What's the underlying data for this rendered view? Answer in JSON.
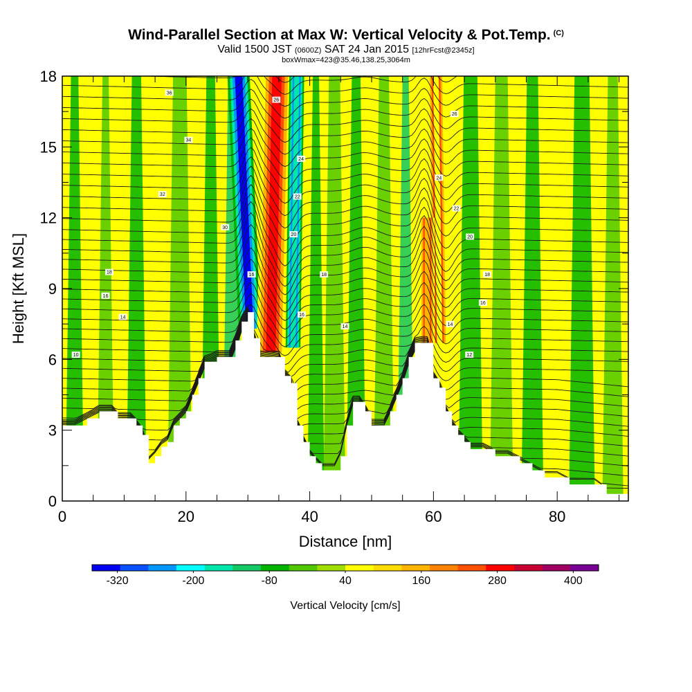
{
  "header": {
    "title": "Wind-Parallel Section at Max W: Vertical Velocity & Pot.Temp.",
    "copyright": "(C)",
    "valid_prefix": "Valid 1500 JST",
    "utc": "(0600Z)",
    "valid_date": "SAT 24 Jan 2015",
    "forecast": "[12hrFcst@2345z]",
    "box_info": "boxWmax=423@35.46,138.25,3064m"
  },
  "chart_data": {
    "type": "heatmap",
    "xlabel": "Distance [nm]",
    "ylabel": "Height [Kft MSL]",
    "xlim": [
      0,
      91.5
    ],
    "ylim": [
      0,
      18
    ],
    "x_ticks": [
      0,
      20,
      40,
      60,
      80
    ],
    "y_ticks": [
      0,
      3,
      6,
      9,
      12,
      15,
      18
    ],
    "colorbar": {
      "label": "Vertical Velocity [cm/s]",
      "tick_labels": [
        "-320",
        "-200",
        "-80",
        "40",
        "160",
        "280",
        "400"
      ],
      "tick_values": [
        -320,
        -200,
        -80,
        40,
        160,
        280,
        400
      ],
      "min": -360,
      "max": 440,
      "colors": [
        "#0000f0",
        "#0a50ff",
        "#0096ff",
        "#00ffff",
        "#00e6aa",
        "#14c864",
        "#00b400",
        "#50c800",
        "#a0dc00",
        "#ffff00",
        "#ffdc00",
        "#ffb400",
        "#ff8200",
        "#ff5000",
        "#ff0000",
        "#c80032",
        "#a00064",
        "#780096"
      ]
    },
    "terrain": [
      [
        0,
        3.2
      ],
      [
        2,
        3.2
      ],
      [
        4,
        3.5
      ],
      [
        6,
        3.8
      ],
      [
        8,
        3.8
      ],
      [
        9,
        3.5
      ],
      [
        11,
        3.5
      ],
      [
        12,
        3.2
      ],
      [
        13,
        2.8
      ],
      [
        14,
        1.6
      ],
      [
        15,
        1.9
      ],
      [
        16,
        2.3
      ],
      [
        17,
        2.5
      ],
      [
        18,
        3.2
      ],
      [
        19,
        3.5
      ],
      [
        20,
        3.8
      ],
      [
        21,
        4.5
      ],
      [
        22,
        5.2
      ],
      [
        23,
        5.9
      ],
      [
        25,
        6.1
      ],
      [
        27,
        6.1
      ],
      [
        28,
        6.8
      ],
      [
        29,
        7.6
      ],
      [
        30,
        8.0
      ],
      [
        31,
        6.9
      ],
      [
        32,
        6.1
      ],
      [
        35,
        6.1
      ],
      [
        36,
        5.3
      ],
      [
        37,
        5.0
      ],
      [
        38,
        3.2
      ],
      [
        39,
        2.5
      ],
      [
        40,
        1.9
      ],
      [
        41,
        1.6
      ],
      [
        42,
        1.3
      ],
      [
        44,
        1.3
      ],
      [
        45,
        1.9
      ],
      [
        46,
        3.2
      ],
      [
        47,
        4.2
      ],
      [
        48,
        4.2
      ],
      [
        49,
        3.8
      ],
      [
        50,
        3.2
      ],
      [
        52,
        3.2
      ],
      [
        53,
        3.8
      ],
      [
        54,
        4.5
      ],
      [
        55,
        5.2
      ],
      [
        56,
        6.1
      ],
      [
        57,
        6.7
      ],
      [
        59,
        6.7
      ],
      [
        60,
        5.2
      ],
      [
        61,
        4.8
      ],
      [
        62,
        3.8
      ],
      [
        63,
        3.2
      ],
      [
        64,
        2.8
      ],
      [
        65,
        2.5
      ],
      [
        66,
        2.2
      ],
      [
        68,
        2.2
      ],
      [
        70,
        1.9
      ],
      [
        72,
        1.9
      ],
      [
        74,
        1.6
      ],
      [
        76,
        1.3
      ],
      [
        78,
        1.0
      ],
      [
        80,
        1.0
      ],
      [
        82,
        0.7
      ],
      [
        86,
        0.7
      ],
      [
        88,
        0.3
      ],
      [
        91.5,
        0.3
      ]
    ],
    "vertical_velocity_features": [
      {
        "x": 30.3,
        "width": 1.8,
        "ymin": 7.3,
        "ymax": 18,
        "lean": -1.8,
        "value": -320
      },
      {
        "x": 33.7,
        "width": 2.3,
        "ymin": 6.3,
        "ymax": 18,
        "lean": 1.0,
        "value": 300
      },
      {
        "x": 61.0,
        "width": 1.3,
        "ymin": 6.7,
        "ymax": 18,
        "lean": -0.6,
        "value": 60
      },
      {
        "x": 59.0,
        "width": 1.2,
        "ymin": 6.5,
        "ymax": 12,
        "lean": 0,
        "value": 160
      },
      {
        "x": 37.3,
        "width": 1.2,
        "ymin": 6.5,
        "ymax": 18,
        "lean": 0.6,
        "value": -160
      }
    ],
    "isentrope_labels": [
      {
        "x": 17.3,
        "y": 17.3,
        "text": "36"
      },
      {
        "x": 20.4,
        "y": 15.3,
        "text": "34"
      },
      {
        "x": 16.2,
        "y": 13.0,
        "text": "32"
      },
      {
        "x": 26.3,
        "y": 11.6,
        "text": "30"
      },
      {
        "x": 7.6,
        "y": 9.7,
        "text": "18"
      },
      {
        "x": 7.0,
        "y": 8.7,
        "text": "16"
      },
      {
        "x": 9.8,
        "y": 7.8,
        "text": "14"
      },
      {
        "x": 2.2,
        "y": 6.2,
        "text": "10"
      },
      {
        "x": 30.6,
        "y": 9.6,
        "text": "16"
      },
      {
        "x": 34.6,
        "y": 17.0,
        "text": "26"
      },
      {
        "x": 38.6,
        "y": 14.5,
        "text": "24"
      },
      {
        "x": 38.0,
        "y": 12.9,
        "text": "22"
      },
      {
        "x": 37.4,
        "y": 11.3,
        "text": "20"
      },
      {
        "x": 42.3,
        "y": 9.6,
        "text": "18"
      },
      {
        "x": 38.7,
        "y": 7.9,
        "text": "16"
      },
      {
        "x": 45.7,
        "y": 7.4,
        "text": "14"
      },
      {
        "x": 63.4,
        "y": 16.4,
        "text": "26"
      },
      {
        "x": 60.9,
        "y": 13.7,
        "text": "24"
      },
      {
        "x": 63.7,
        "y": 12.4,
        "text": "22"
      },
      {
        "x": 65.9,
        "y": 11.2,
        "text": "20"
      },
      {
        "x": 68.7,
        "y": 9.6,
        "text": "18"
      },
      {
        "x": 68.0,
        "y": 8.4,
        "text": "16"
      },
      {
        "x": 62.7,
        "y": 7.5,
        "text": "14"
      },
      {
        "x": 65.8,
        "y": 6.2,
        "text": "12"
      }
    ]
  }
}
